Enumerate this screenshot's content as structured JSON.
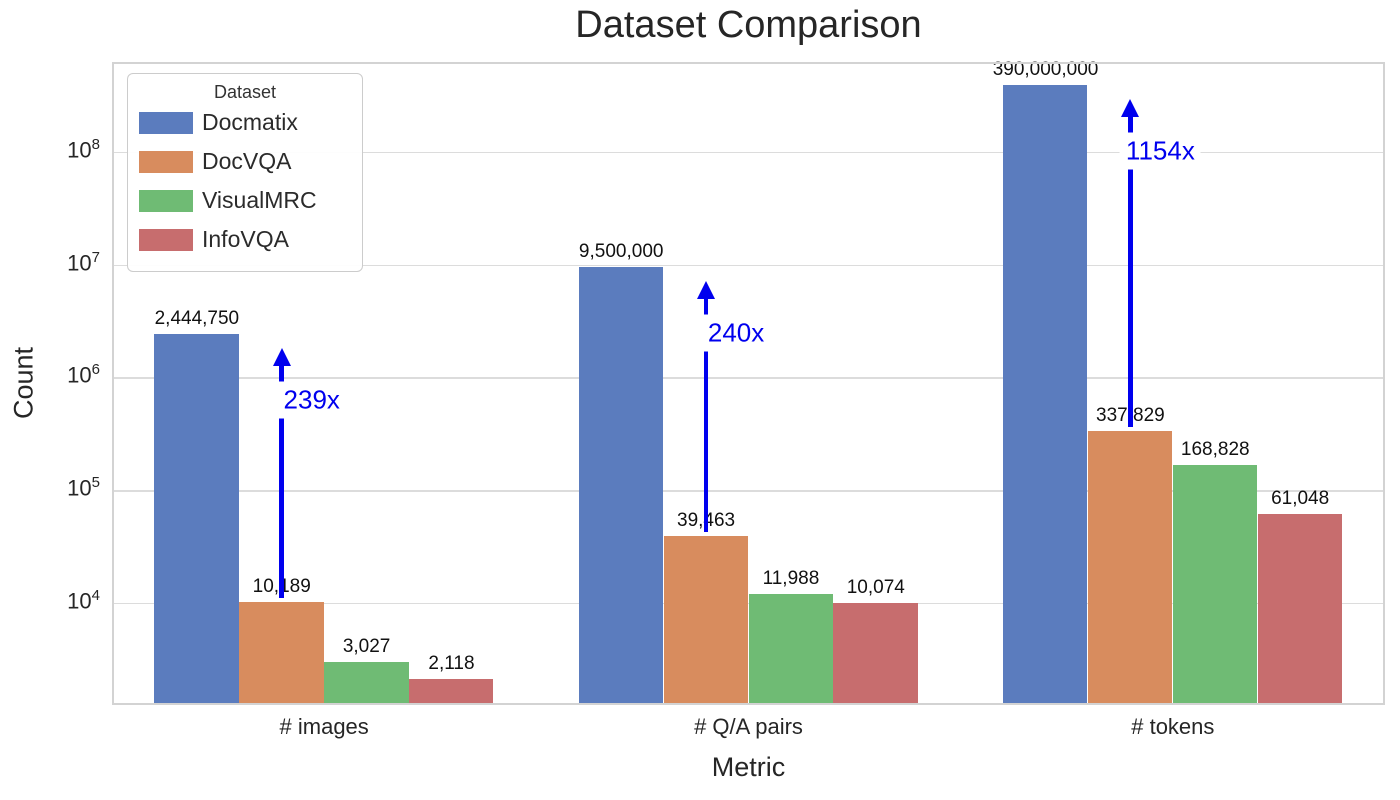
{
  "chart_data": {
    "type": "bar",
    "title": "Dataset Comparison",
    "xlabel": "Metric",
    "ylabel": "Count",
    "yscale": "log",
    "ylim": [
      1245,
      630000000
    ],
    "y_tick_exponents": [
      4,
      5,
      6,
      7,
      8
    ],
    "grid": "horizontal-major",
    "legend": {
      "title": "Dataset",
      "position": "upper-left"
    },
    "categories": [
      "# images",
      "# Q/A pairs",
      "# tokens"
    ],
    "series": [
      {
        "name": "Docmatix",
        "color": "#5B7CBE",
        "values": [
          2444750,
          9500000,
          390000000
        ],
        "labels": [
          "2,444,750",
          "9,500,000",
          "390,000,000"
        ]
      },
      {
        "name": "DocVQA",
        "color": "#D88C5E",
        "values": [
          10189,
          39463,
          337829
        ],
        "labels": [
          "10,189",
          "39,463",
          "337,829"
        ]
      },
      {
        "name": "VisualMRC",
        "color": "#6FBB74",
        "values": [
          3027,
          11988,
          168828
        ],
        "labels": [
          "3,027",
          "11,988",
          "168,828"
        ]
      },
      {
        "name": "InfoVQA",
        "color": "#C76D6E",
        "values": [
          2118,
          10074,
          61048
        ],
        "labels": [
          "2,118",
          "10,074",
          "61,048"
        ]
      }
    ],
    "annotations": [
      {
        "text": "239x",
        "category_index": 0,
        "from_series": "DocVQA",
        "to_series": "Docmatix",
        "color": "#0000EE"
      },
      {
        "text": "240x",
        "category_index": 1,
        "from_series": "DocVQA",
        "to_series": "Docmatix",
        "color": "#0000EE"
      },
      {
        "text": "1154x",
        "category_index": 2,
        "from_series": "DocVQA",
        "to_series": "Docmatix",
        "color": "#0000EE"
      }
    ]
  }
}
